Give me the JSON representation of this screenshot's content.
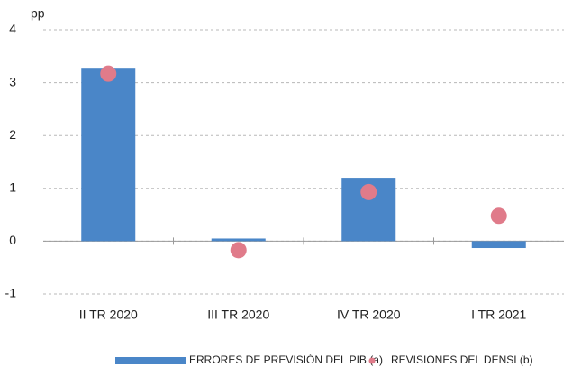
{
  "chart_data": {
    "type": "bar",
    "ylabel": "pp",
    "categories": [
      "II TR 2020",
      "III TR 2020",
      "IV TR 2020",
      "I TR 2021"
    ],
    "series": [
      {
        "name": "ERRORES DE PREVISIÓN DEL PIB (a)",
        "type": "bar",
        "color": "#4a86c8",
        "values": [
          3.28,
          0.05,
          1.2,
          -0.13
        ]
      },
      {
        "name": "REVISIONES DEL DENSI (b)",
        "type": "scatter",
        "color": "#e07b8a",
        "values": [
          3.17,
          -0.17,
          0.93,
          0.48
        ]
      }
    ],
    "ylim": [
      -1,
      4
    ],
    "yticks": [
      -1,
      0,
      1,
      2,
      3,
      4
    ],
    "grid": true
  }
}
